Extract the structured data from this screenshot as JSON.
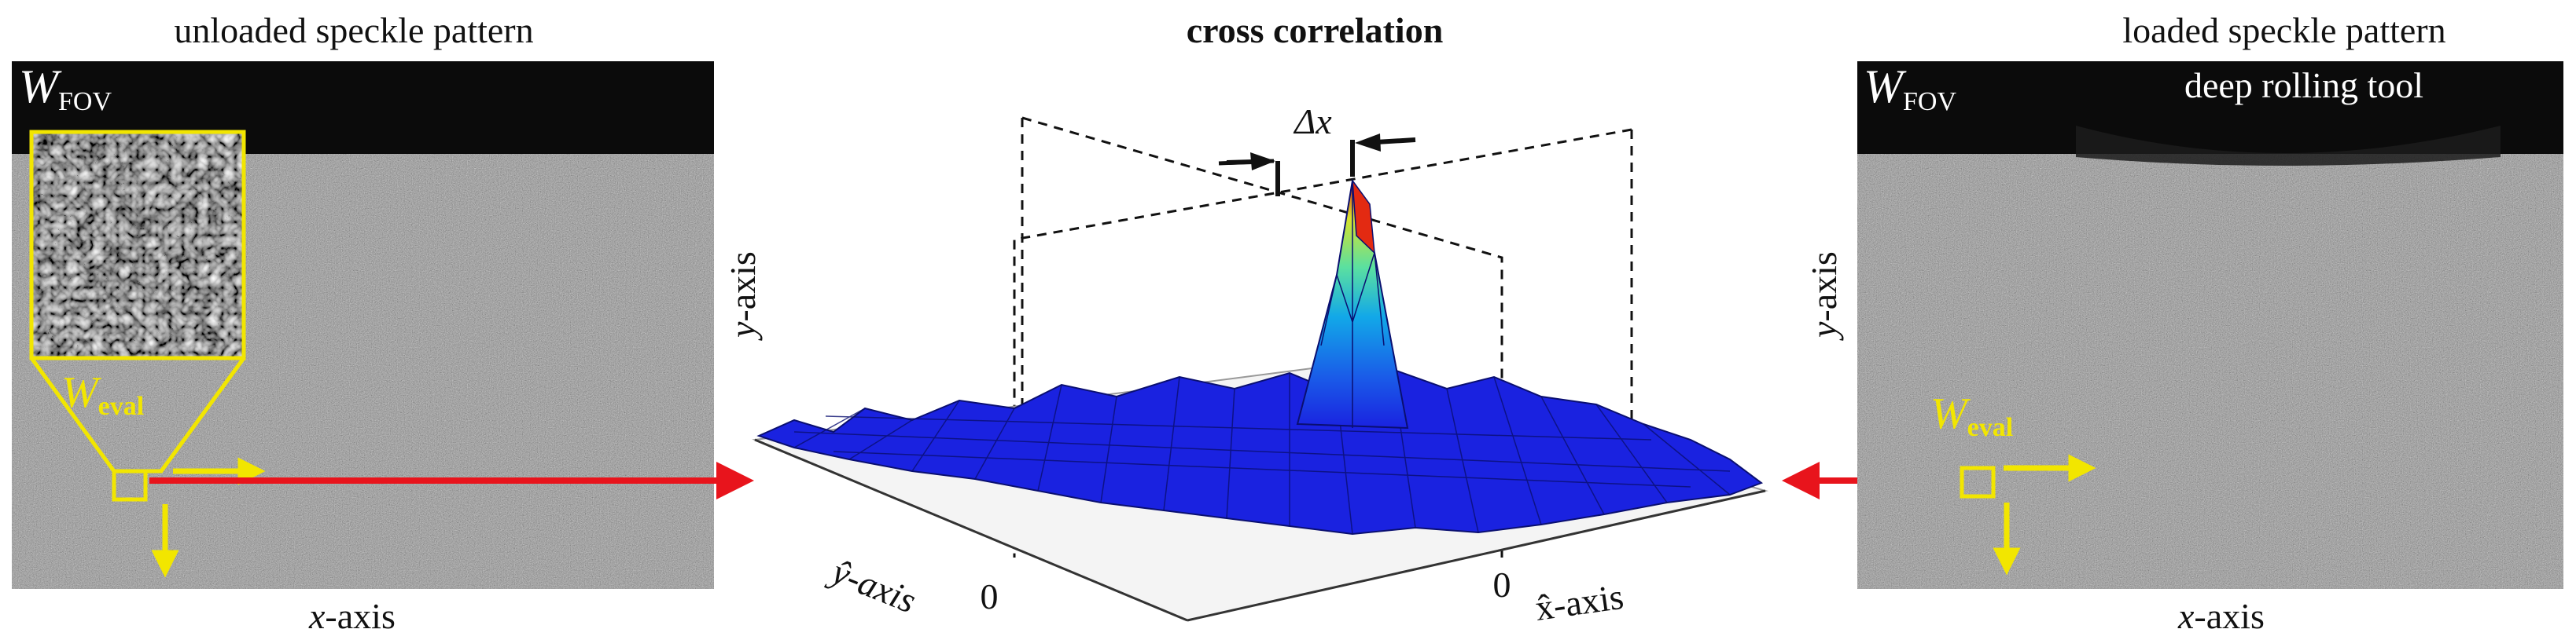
{
  "left_panel": {
    "title": "unloaded speckle pattern",
    "w_fov": "W",
    "w_fov_sub": "FOV",
    "w_eval": "W",
    "w_eval_sub": "eval",
    "x_axis": "x",
    "x_axis_suffix": "-axis",
    "y_axis": "y",
    "y_axis_suffix": "-axis"
  },
  "center": {
    "title": "cross correlation",
    "delta_x": "Δx",
    "y_hat_axis": "ŷ-axis",
    "x_hat_axis": "x̂-axis",
    "y_zero": "0",
    "x_zero": "0"
  },
  "right_panel": {
    "title": "loaded speckle pattern",
    "w_fov": "W",
    "w_fov_sub": "FOV",
    "tool_label": "deep rolling tool",
    "w_eval": "W",
    "w_eval_sub": "eval",
    "x_axis": "x",
    "x_axis_suffix": "-axis",
    "y_axis": "y",
    "y_axis_suffix": "-axis"
  },
  "colors": {
    "arrow_red": "#e8141c",
    "marker_yellow": "#f2e600",
    "surface_blue": "#1a22e0",
    "peak_red": "#e32a12"
  }
}
